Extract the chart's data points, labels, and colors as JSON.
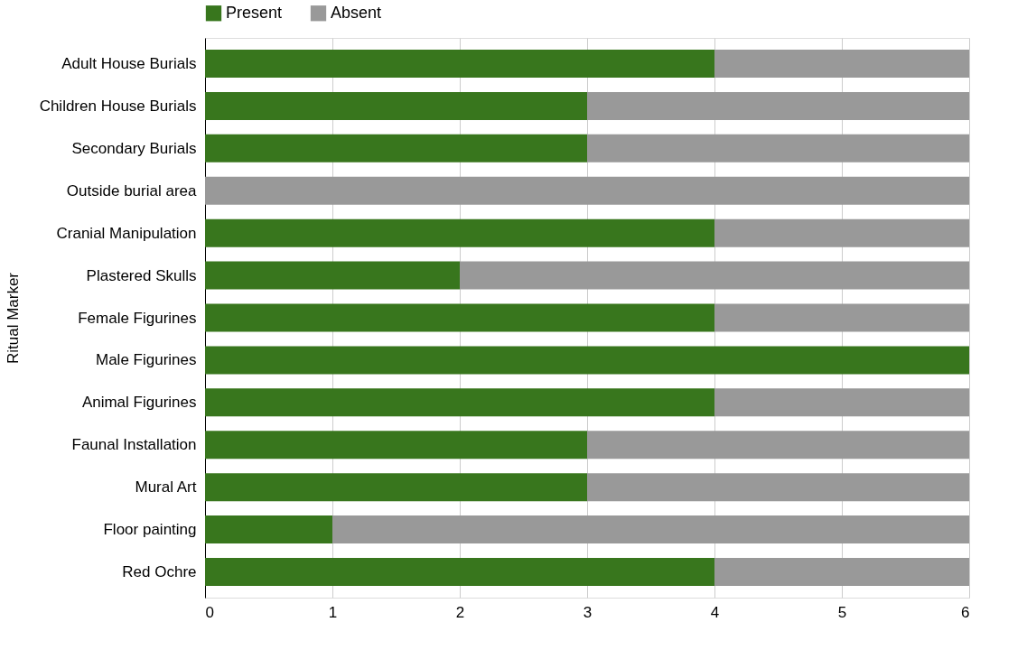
{
  "chart_data": {
    "type": "bar",
    "orientation": "horizontal",
    "stacked": true,
    "ylabel": "Ritual Marker",
    "categories": [
      "Adult House Burials",
      "Children House Burials",
      "Secondary Burials",
      "Outside burial area",
      "Cranial Manipulation",
      "Plastered Skulls",
      "Female Figurines",
      "Male Figurines",
      "Animal Figurines",
      "Faunal Installation",
      "Mural Art",
      "Floor painting",
      "Red Ochre"
    ],
    "series": [
      {
        "name": "Present",
        "color": "#38761d",
        "values": [
          4,
          3,
          3,
          0,
          4,
          2,
          4,
          6,
          4,
          3,
          3,
          1,
          4
        ]
      },
      {
        "name": "Absent",
        "color": "#999999",
        "values": [
          2,
          3,
          3,
          6,
          2,
          4,
          2,
          0,
          2,
          3,
          3,
          5,
          2
        ]
      }
    ],
    "xlim": [
      0,
      6
    ],
    "xticks": [
      0,
      1,
      2,
      3,
      4,
      5,
      6
    ],
    "grid": "x",
    "legend": "top"
  }
}
